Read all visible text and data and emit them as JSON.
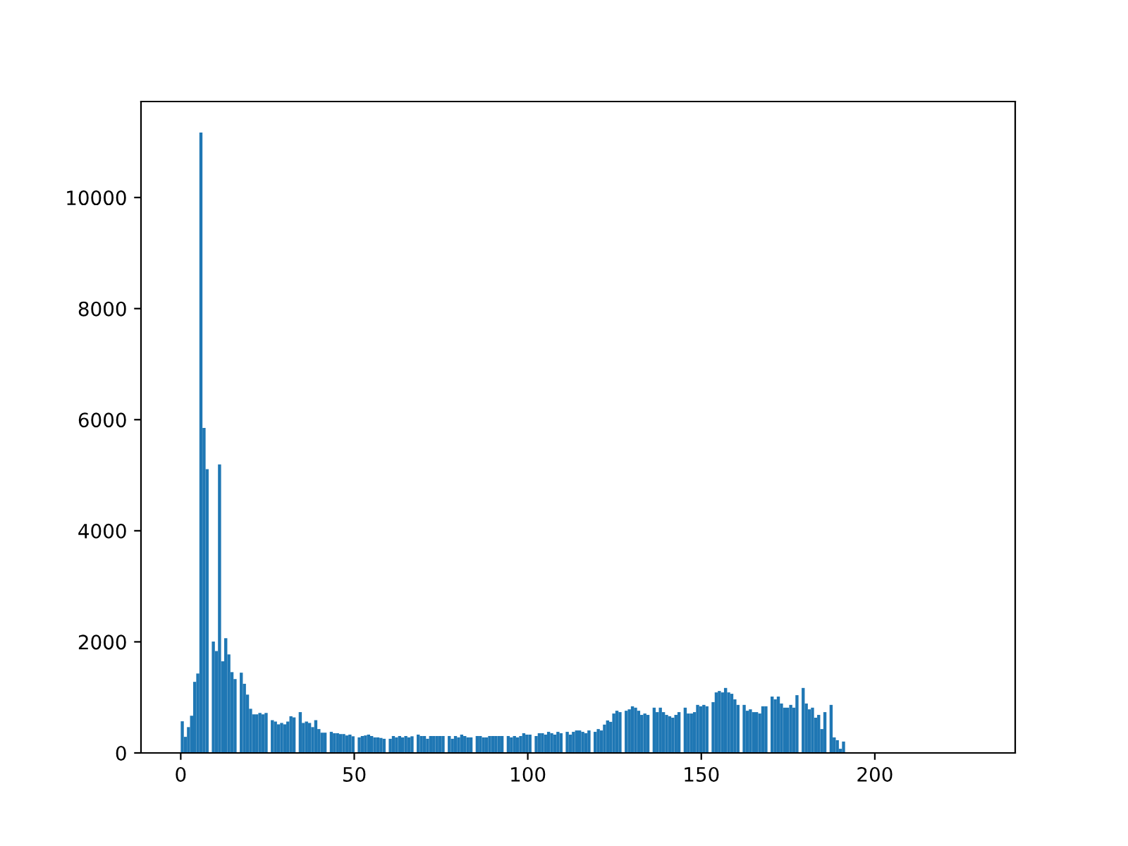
{
  "chart_data": {
    "type": "histogram",
    "color": "#1f77b4",
    "bins": [
      0,
      0.89,
      1.79,
      2.68,
      3.58,
      4.47,
      5.37,
      6.26,
      7.16,
      8.05,
      8.95,
      9.84,
      10.73,
      11.63,
      12.52,
      13.42,
      14.31,
      15.21,
      16.1,
      17.0,
      17.89,
      18.79,
      19.68,
      20.57,
      21.47,
      22.36,
      23.26,
      24.15,
      25.05,
      25.94,
      26.84,
      27.73,
      28.63,
      29.52,
      30.41,
      31.31,
      32.2,
      33.1,
      33.99,
      34.89,
      35.78,
      36.68,
      37.57,
      38.46,
      39.36,
      40.25,
      41.15,
      42.04,
      42.94,
      43.83,
      44.73,
      45.62,
      46.52,
      47.41,
      48.3,
      49.2,
      50.09,
      50.99,
      51.88,
      52.78,
      53.67,
      54.57,
      55.46,
      56.36,
      57.25,
      58.14,
      59.04,
      59.93,
      60.83,
      61.72,
      62.62,
      63.51,
      64.41,
      65.3,
      66.2,
      67.09,
      67.98,
      68.88,
      69.77,
      70.67,
      71.56,
      72.46,
      73.35,
      74.25,
      75.14,
      76.04,
      76.93,
      77.82,
      78.72,
      79.61,
      80.51,
      81.4,
      82.3,
      83.19,
      84.09,
      84.98,
      85.88,
      86.77,
      87.66,
      88.56,
      89.45,
      90.35,
      91.24,
      92.14,
      93.03,
      93.93,
      94.82,
      95.71,
      96.61,
      97.5,
      98.4,
      99.29,
      100.19,
      101.08,
      101.98,
      102.87,
      103.77,
      104.66,
      105.55,
      106.45,
      107.34,
      108.24,
      109.13,
      110.03,
      110.92,
      111.82,
      112.71,
      113.61,
      114.5,
      115.39,
      116.29,
      117.18,
      118.08,
      118.97,
      119.87,
      120.76,
      121.66,
      122.55,
      123.45,
      124.34,
      125.23,
      126.13,
      127.02,
      127.92,
      128.81,
      129.71,
      130.6,
      131.5,
      132.39,
      133.29,
      134.18,
      135.07,
      135.97,
      136.86,
      137.76,
      138.65,
      139.55,
      140.44,
      141.34,
      142.23,
      143.13,
      144.02,
      144.91,
      145.81,
      146.7,
      147.6,
      148.49,
      149.39,
      150.28,
      151.18,
      152.07,
      152.96,
      153.86,
      154.75,
      155.65,
      156.54,
      157.44,
      158.33,
      159.23,
      160.12,
      161.02,
      161.91,
      162.8,
      163.7,
      164.59,
      165.49,
      166.38,
      167.28,
      168.17,
      169.07,
      169.96,
      170.86,
      171.75,
      172.64,
      173.54,
      174.43,
      175.33,
      176.22,
      177.12,
      178.01,
      178.91,
      179.8,
      180.7,
      181.59,
      182.48,
      183.38,
      184.27,
      185.17,
      186.06,
      186.96,
      187.85,
      188.75,
      189.64,
      190.54,
      191.43
    ],
    "values": [
      570,
      290,
      465,
      670,
      1280,
      1430,
      11170,
      5850,
      5110,
      0,
      2005,
      1835,
      5195,
      1650,
      2065,
      1775,
      1455,
      1330,
      0,
      1445,
      1245,
      1050,
      795,
      695,
      695,
      720,
      695,
      720,
      0,
      590,
      565,
      515,
      540,
      515,
      565,
      660,
      640,
      0,
      735,
      540,
      565,
      540,
      465,
      590,
      430,
      365,
      365,
      0,
      380,
      355,
      355,
      340,
      340,
      315,
      330,
      300,
      0,
      280,
      305,
      315,
      330,
      305,
      280,
      280,
      270,
      255,
      0,
      255,
      305,
      280,
      305,
      280,
      305,
      280,
      300,
      0,
      330,
      305,
      305,
      255,
      305,
      305,
      305,
      305,
      305,
      0,
      305,
      255,
      305,
      280,
      330,
      305,
      280,
      280,
      0,
      305,
      305,
      280,
      280,
      305,
      305,
      305,
      305,
      305,
      0,
      305,
      280,
      305,
      280,
      305,
      355,
      330,
      330,
      0,
      305,
      355,
      355,
      330,
      380,
      355,
      330,
      380,
      355,
      0,
      380,
      330,
      380,
      405,
      405,
      380,
      355,
      405,
      0,
      380,
      430,
      405,
      510,
      585,
      560,
      710,
      760,
      735,
      0,
      760,
      785,
      840,
      815,
      760,
      685,
      710,
      685,
      0,
      815,
      735,
      815,
      735,
      685,
      660,
      635,
      685,
      735,
      0,
      815,
      710,
      710,
      735,
      865,
      840,
      865,
      840,
      0,
      915,
      1090,
      1115,
      1090,
      1170,
      1090,
      1065,
      965,
      865,
      0,
      865,
      760,
      785,
      735,
      735,
      710,
      840,
      840,
      0,
      1015,
      965,
      1015,
      890,
      815,
      815,
      865,
      815,
      1040,
      0,
      1170,
      890,
      785,
      815,
      635,
      685,
      430,
      735,
      0,
      865,
      280,
      230,
      75,
      205
    ],
    "xlim": [
      -11.45,
      240.45
    ],
    "xticks": [
      0,
      50,
      100,
      150,
      200
    ],
    "ylim": [
      0,
      11728
    ],
    "yticks": [
      0,
      2000,
      4000,
      6000,
      8000,
      10000
    ],
    "grid": false
  }
}
